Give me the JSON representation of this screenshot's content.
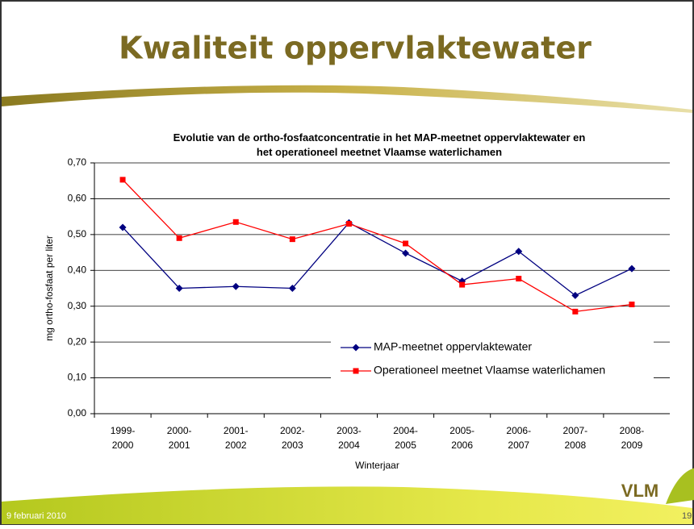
{
  "slide": {
    "title": "Kwaliteit oppervlaktewater",
    "footer_date": "9 februari 2010",
    "page_number": "19",
    "logo": "VLM"
  },
  "chart_data": {
    "type": "line",
    "title": "Evolutie van de ortho-fosfaatconcentratie in het MAP-meetnet oppervlaktewater en het operationeel meetnet Vlaamse waterlichamen",
    "x_label": "Winterjaar",
    "y_label": "mg ortho-fosfaat per liter",
    "categories": [
      "1999-2000",
      "2000-2001",
      "2001-2002",
      "2002-2003",
      "2003-2004",
      "2004-2005",
      "2005-2006",
      "2006-2007",
      "2007-2008",
      "2008-2009"
    ],
    "series": [
      {
        "name": "MAP-meetnet oppervlaktewater",
        "color": "#000080",
        "marker": "diamond",
        "values": [
          0.52,
          0.35,
          0.355,
          0.35,
          0.533,
          0.448,
          0.37,
          0.453,
          0.33,
          0.405
        ]
      },
      {
        "name": "Operationeel meetnet Vlaamse waterlichamen",
        "color": "#ff0000",
        "marker": "square",
        "values": [
          0.653,
          0.49,
          0.535,
          0.487,
          0.53,
          0.475,
          0.36,
          0.377,
          0.285,
          0.305
        ]
      }
    ],
    "ylim": [
      0,
      0.7
    ],
    "yticks": [
      {
        "value": 0,
        "label": "0,00"
      },
      {
        "value": 0.1,
        "label": "0,10"
      },
      {
        "value": 0.2,
        "label": "0,20"
      },
      {
        "value": 0.3,
        "label": "0,30"
      },
      {
        "value": 0.4,
        "label": "0,40"
      },
      {
        "value": 0.5,
        "label": "0,50"
      },
      {
        "value": 0.6,
        "label": "0,60"
      },
      {
        "value": 0.7,
        "label": "0,70"
      }
    ],
    "grid": true,
    "legend": "lower right"
  }
}
